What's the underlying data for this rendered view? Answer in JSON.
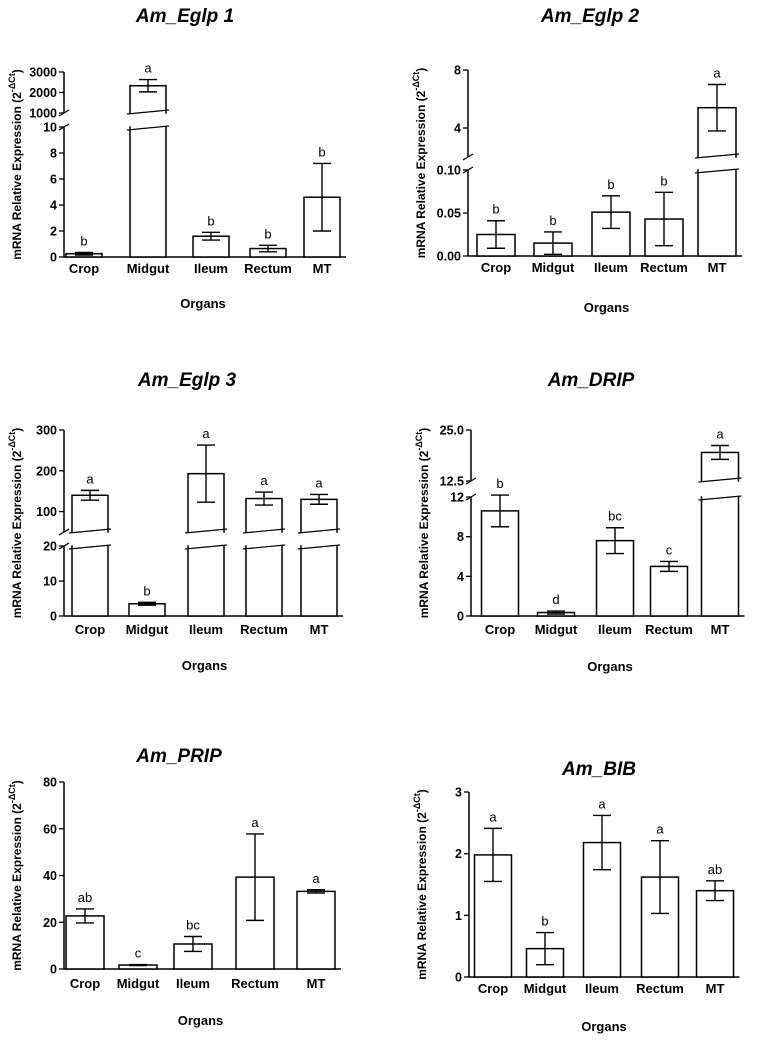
{
  "chart_data": [
    {
      "type": "bar",
      "title": "Am_Eglp 1",
      "xlabel": "Organs",
      "ylabel": "mRNA Relative Expression (2",
      "ylabel_sup": "-ΔCt",
      "ylabel_close": ")",
      "categories": [
        "Crop",
        "Midgut",
        "Ileum",
        "Rectum",
        "MT"
      ],
      "values": [
        0.25,
        2330,
        1.6,
        0.65,
        4.6
      ],
      "errors": [
        0.1,
        300,
        0.3,
        0.25,
        2.6
      ],
      "letters": [
        "b",
        "a",
        "b",
        "b",
        "b"
      ],
      "broken_axis": true,
      "segments": [
        {
          "range": [
            0,
            10
          ],
          "ticks": [
            0,
            2,
            4,
            6,
            8,
            10
          ],
          "tick_labels": [
            "0",
            "2",
            "4",
            "6",
            "8",
            "10"
          ]
        },
        {
          "range": [
            1000,
            3000
          ],
          "ticks": [
            1000,
            2000,
            3000
          ],
          "tick_labels": [
            "1000",
            "2000",
            "3000"
          ]
        }
      ]
    },
    {
      "type": "bar",
      "title": "Am_Eglp 2",
      "xlabel": "Organs",
      "ylabel": "mRNA Relative Expression (2",
      "ylabel_sup": "-ΔCt",
      "ylabel_close": ")",
      "categories": [
        "Crop",
        "Midgut",
        "Ileum",
        "Rectum",
        "MT"
      ],
      "values": [
        0.025,
        0.015,
        0.051,
        0.043,
        5.4
      ],
      "errors": [
        0.016,
        0.013,
        0.019,
        0.031,
        1.6
      ],
      "letters": [
        "b",
        "b",
        "b",
        "b",
        "a"
      ],
      "broken_axis": true,
      "segments": [
        {
          "range": [
            0,
            0.1
          ],
          "ticks": [
            0,
            0.05,
            0.1
          ],
          "tick_labels": [
            "0.00",
            "0.05",
            "0.10"
          ]
        },
        {
          "range": [
            2,
            8
          ],
          "ticks": [
            4,
            8
          ],
          "tick_labels": [
            "4",
            "8"
          ]
        }
      ]
    },
    {
      "type": "bar",
      "title": "Am_Eglp 3",
      "xlabel": "Organs",
      "ylabel": "mRNA Relative Expression (2",
      "ylabel_sup": "-ΔCt",
      "ylabel_close": ")",
      "categories": [
        "Crop",
        "Midgut",
        "Ileum",
        "Rectum",
        "MT"
      ],
      "values": [
        140,
        3.5,
        193,
        132,
        130
      ],
      "errors": [
        12,
        0.4,
        70,
        16,
        12
      ],
      "letters": [
        "a",
        "b",
        "a",
        "a",
        "a"
      ],
      "broken_axis": true,
      "segments": [
        {
          "range": [
            0,
            20
          ],
          "ticks": [
            0,
            10,
            20
          ],
          "tick_labels": [
            "0",
            "10",
            "20"
          ]
        },
        {
          "range": [
            50,
            300
          ],
          "ticks": [
            100,
            200,
            300
          ],
          "tick_labels": [
            "100",
            "200",
            "300"
          ]
        }
      ]
    },
    {
      "type": "bar",
      "title": "Am_DRIP",
      "xlabel": "Organs",
      "ylabel": "mRNA Relative Expression (2",
      "ylabel_sup": "-ΔCt",
      "ylabel_close": ")",
      "categories": [
        "Crop",
        "Midgut",
        "Ileum",
        "Rectum",
        "MT"
      ],
      "values": [
        10.6,
        0.35,
        7.6,
        5.0,
        19.5
      ],
      "errors": [
        1.6,
        0.15,
        1.3,
        0.5,
        1.7
      ],
      "letters": [
        "b",
        "d",
        "bc",
        "c",
        "a"
      ],
      "broken_axis": true,
      "segments": [
        {
          "range": [
            0,
            12
          ],
          "ticks": [
            0,
            4,
            8,
            12
          ],
          "tick_labels": [
            "0",
            "4",
            "8",
            "12"
          ]
        },
        {
          "range": [
            12.5,
            25
          ],
          "ticks": [
            12.5,
            25
          ],
          "tick_labels": [
            "12.5",
            "25.0"
          ]
        }
      ]
    },
    {
      "type": "bar",
      "title": "Am_PRIP",
      "xlabel": "Organs",
      "ylabel": "mRNA Relative Expression (2",
      "ylabel_sup": "-ΔCt",
      "ylabel_close": ")",
      "categories": [
        "Crop",
        "Midgut",
        "Ileum",
        "Rectum",
        "MT"
      ],
      "values": [
        22.7,
        1.7,
        10.7,
        39.3,
        33.2
      ],
      "errors": [
        3.0,
        0.2,
        3.2,
        18.5,
        0.7
      ],
      "letters": [
        "ab",
        "c",
        "bc",
        "a",
        "a"
      ],
      "broken_axis": false,
      "segments": [
        {
          "range": [
            0,
            80
          ],
          "ticks": [
            0,
            20,
            40,
            60,
            80
          ],
          "tick_labels": [
            "0",
            "20",
            "40",
            "60",
            "80"
          ]
        }
      ]
    },
    {
      "type": "bar",
      "title": "Am_BIB",
      "xlabel": "Organs",
      "ylabel": "mRNA Relative Expression (2",
      "ylabel_sup": "-ΔCt",
      "ylabel_close": ")",
      "categories": [
        "Crop",
        "Midgut",
        "Ileum",
        "Rectum",
        "MT"
      ],
      "values": [
        1.98,
        0.46,
        2.18,
        1.62,
        1.4
      ],
      "errors": [
        0.43,
        0.26,
        0.44,
        0.59,
        0.16
      ],
      "letters": [
        "a",
        "b",
        "a",
        "a",
        "ab"
      ],
      "broken_axis": false,
      "segments": [
        {
          "range": [
            0,
            3
          ],
          "ticks": [
            0,
            1,
            2,
            3
          ],
          "tick_labels": [
            "0",
            "1",
            "2",
            "3"
          ]
        }
      ]
    }
  ]
}
